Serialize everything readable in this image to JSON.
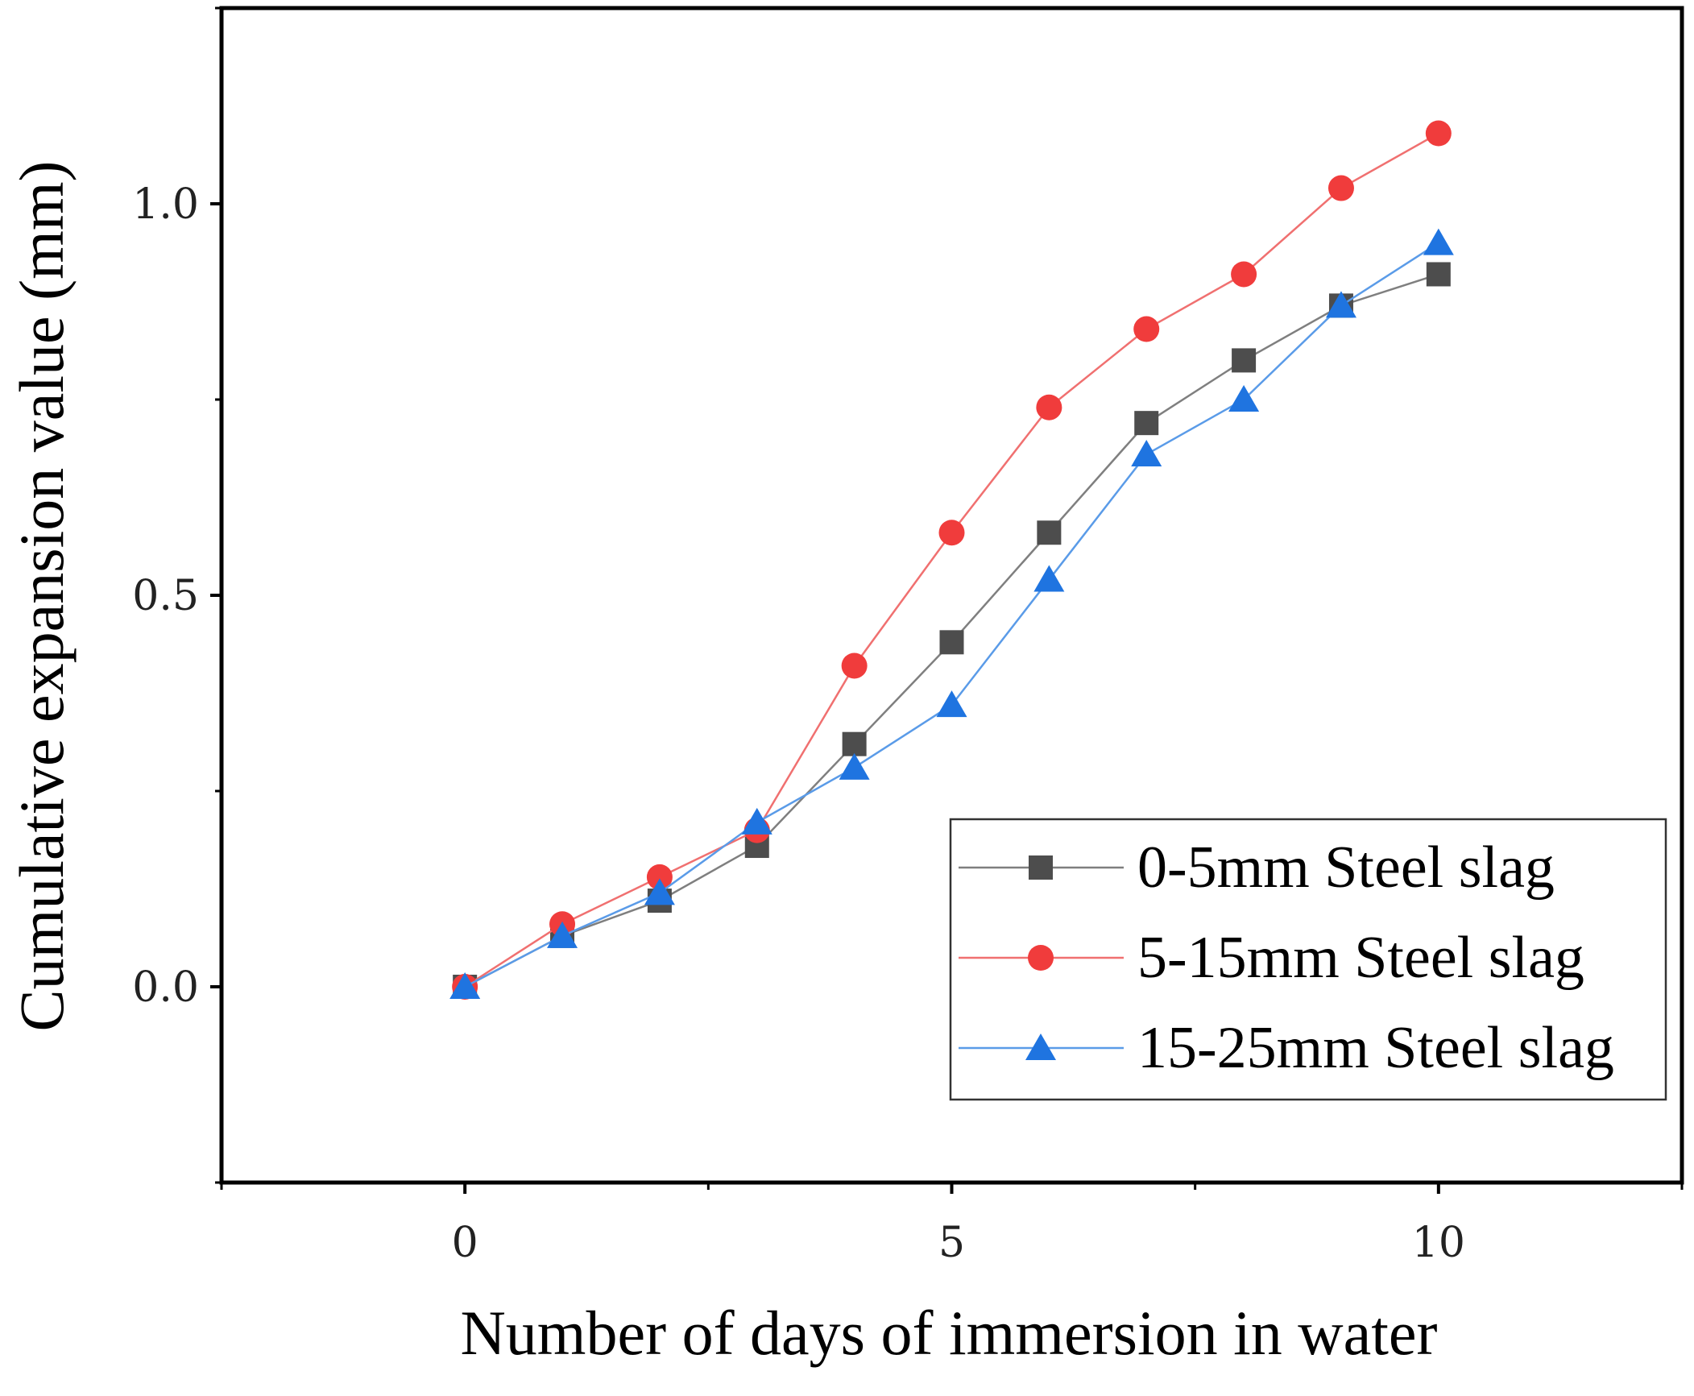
{
  "chart_data": {
    "type": "line",
    "title": "",
    "xlabel": "Number of days of immersion in water",
    "ylabel": "Cumulative expansion value (mm)",
    "xlim": [
      -2.5,
      12.5
    ],
    "ylim": [
      -0.25,
      1.25
    ],
    "xticks": [
      0,
      5,
      10
    ],
    "xtick_labels": [
      "0",
      "5",
      "10"
    ],
    "yticks": [
      0.0,
      0.5,
      1.0
    ],
    "ytick_labels": [
      "0.0",
      "0.5",
      "1.0"
    ],
    "grid": false,
    "legend_position": "bottom-right",
    "x": [
      0,
      1,
      2,
      3,
      4,
      5,
      6,
      7,
      8,
      9,
      10
    ],
    "series": [
      {
        "name": "0-5mm Steel slag",
        "marker": "square",
        "color": "#4d4d4d",
        "line_color": "#7f7f7f",
        "values": [
          0.0,
          0.065,
          0.11,
          0.18,
          0.31,
          0.44,
          0.58,
          0.72,
          0.8,
          0.87,
          0.91
        ]
      },
      {
        "name": "5-15mm Steel slag",
        "marker": "circle",
        "color": "#f03c3c",
        "line_color": "#f07070",
        "values": [
          0.0,
          0.08,
          0.14,
          0.2,
          0.41,
          0.58,
          0.74,
          0.84,
          0.91,
          1.02,
          1.09
        ]
      },
      {
        "name": "15-25mm Steel slag",
        "marker": "triangle",
        "color": "#1f74e0",
        "line_color": "#5a9be8",
        "values": [
          0.0,
          0.065,
          0.12,
          0.21,
          0.28,
          0.36,
          0.52,
          0.68,
          0.75,
          0.87,
          0.95
        ]
      }
    ]
  }
}
